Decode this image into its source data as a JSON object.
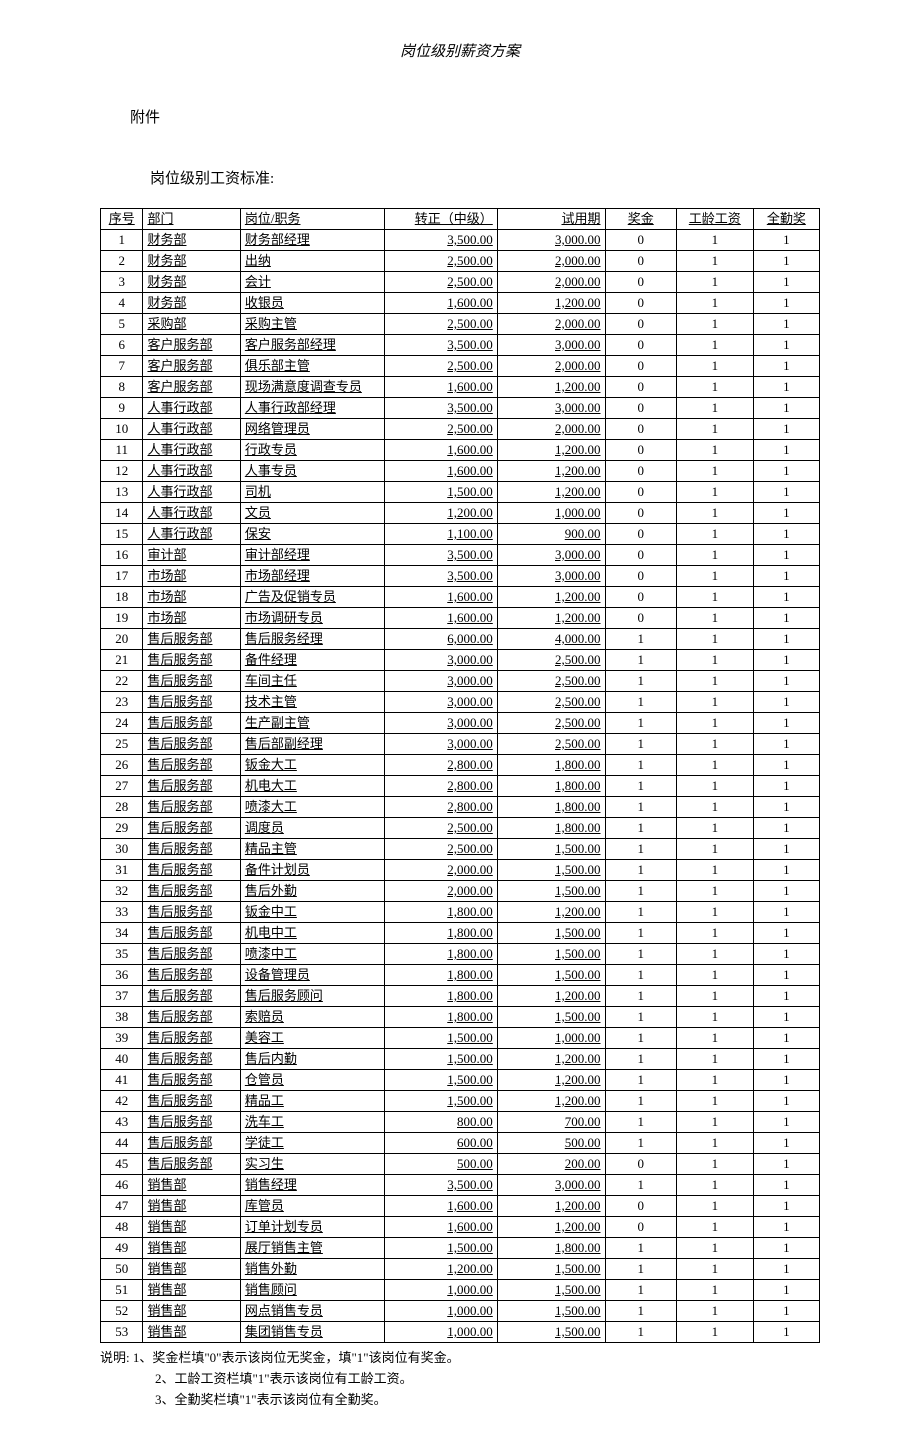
{
  "header": {
    "doc_title": "岗位级别薪资方案",
    "attachment": "附件",
    "subtitle": "岗位级别工资标准:"
  },
  "table": {
    "columns": [
      "序号",
      "部门",
      "岗位/职务",
      "转正（中级）",
      "试用期",
      "奖金",
      "工龄工资",
      "全勤奖"
    ],
    "rows": [
      [
        "1",
        "财务部",
        "财务部经理",
        "3,500.00",
        "3,000.00",
        "0",
        "1",
        "1"
      ],
      [
        "2",
        "财务部",
        "出纳",
        "2,500.00",
        "2,000.00",
        "0",
        "1",
        "1"
      ],
      [
        "3",
        "财务部",
        "会计",
        "2,500.00",
        "2,000.00",
        "0",
        "1",
        "1"
      ],
      [
        "4",
        "财务部",
        "收银员",
        "1,600.00",
        "1,200.00",
        "0",
        "1",
        "1"
      ],
      [
        "5",
        "采购部",
        "采购主管",
        "2,500.00",
        "2,000.00",
        "0",
        "1",
        "1"
      ],
      [
        "6",
        "客户服务部",
        "客户服务部经理",
        "3,500.00",
        "3,000.00",
        "0",
        "1",
        "1"
      ],
      [
        "7",
        "客户服务部",
        "俱乐部主管",
        "2,500.00",
        "2,000.00",
        "0",
        "1",
        "1"
      ],
      [
        "8",
        "客户服务部",
        "现场满意度调查专员",
        "1,600.00",
        "1,200.00",
        "0",
        "1",
        "1"
      ],
      [
        "9",
        "人事行政部",
        "人事行政部经理",
        "3,500.00",
        "3,000.00",
        "0",
        "1",
        "1"
      ],
      [
        "10",
        "人事行政部",
        "网络管理员",
        "2,500.00",
        "2,000.00",
        "0",
        "1",
        "1"
      ],
      [
        "11",
        "人事行政部",
        "行政专员",
        "1,600.00",
        "1,200.00",
        "0",
        "1",
        "1"
      ],
      [
        "12",
        "人事行政部",
        "人事专员",
        "1,600.00",
        "1,200.00",
        "0",
        "1",
        "1"
      ],
      [
        "13",
        "人事行政部",
        "司机",
        "1,500.00",
        "1,200.00",
        "0",
        "1",
        "1"
      ],
      [
        "14",
        "人事行政部",
        "文员",
        "1,200.00",
        "1,000.00",
        "0",
        "1",
        "1"
      ],
      [
        "15",
        "人事行政部",
        "保安",
        "1,100.00",
        "900.00",
        "0",
        "1",
        "1"
      ],
      [
        "16",
        "审计部",
        "审计部经理",
        "3,500.00",
        "3,000.00",
        "0",
        "1",
        "1"
      ],
      [
        "17",
        "市场部",
        "市场部经理",
        "3,500.00",
        "3,000.00",
        "0",
        "1",
        "1"
      ],
      [
        "18",
        "市场部",
        "广告及促销专员",
        "1,600.00",
        "1,200.00",
        "0",
        "1",
        "1"
      ],
      [
        "19",
        "市场部",
        "市场调研专员",
        "1,600.00",
        "1,200.00",
        "0",
        "1",
        "1"
      ],
      [
        "20",
        "售后服务部",
        "售后服务经理",
        "6,000.00",
        "4,000.00",
        "1",
        "1",
        "1"
      ],
      [
        "21",
        "售后服务部",
        "备件经理",
        "3,000.00",
        "2,500.00",
        "1",
        "1",
        "1"
      ],
      [
        "22",
        "售后服务部",
        "车间主任",
        "3,000.00",
        "2,500.00",
        "1",
        "1",
        "1"
      ],
      [
        "23",
        "售后服务部",
        "技术主管",
        "3,000.00",
        "2,500.00",
        "1",
        "1",
        "1"
      ],
      [
        "24",
        "售后服务部",
        "生产副主管",
        "3,000.00",
        "2,500.00",
        "1",
        "1",
        "1"
      ],
      [
        "25",
        "售后服务部",
        "售后部副经理",
        "3,000.00",
        "2,500.00",
        "1",
        "1",
        "1"
      ],
      [
        "26",
        "售后服务部",
        "钣金大工",
        "2,800.00",
        "1,800.00",
        "1",
        "1",
        "1"
      ],
      [
        "27",
        "售后服务部",
        "机电大工",
        "2,800.00",
        "1,800.00",
        "1",
        "1",
        "1"
      ],
      [
        "28",
        "售后服务部",
        "喷漆大工",
        "2,800.00",
        "1,800.00",
        "1",
        "1",
        "1"
      ],
      [
        "29",
        "售后服务部",
        "调度员",
        "2,500.00",
        "1,800.00",
        "1",
        "1",
        "1"
      ],
      [
        "30",
        "售后服务部",
        "精品主管",
        "2,500.00",
        "1,500.00",
        "1",
        "1",
        "1"
      ],
      [
        "31",
        "售后服务部",
        "备件计划员",
        "2,000.00",
        "1,500.00",
        "1",
        "1",
        "1"
      ],
      [
        "32",
        "售后服务部",
        "售后外勤",
        "2,000.00",
        "1,500.00",
        "1",
        "1",
        "1"
      ],
      [
        "33",
        "售后服务部",
        "钣金中工",
        "1,800.00",
        "1,200.00",
        "1",
        "1",
        "1"
      ],
      [
        "34",
        "售后服务部",
        "机电中工",
        "1,800.00",
        "1,500.00",
        "1",
        "1",
        "1"
      ],
      [
        "35",
        "售后服务部",
        "喷漆中工",
        "1,800.00",
        "1,500.00",
        "1",
        "1",
        "1"
      ],
      [
        "36",
        "售后服务部",
        "设备管理员",
        "1,800.00",
        "1,500.00",
        "1",
        "1",
        "1"
      ],
      [
        "37",
        "售后服务部",
        "售后服务顾问",
        "1,800.00",
        "1,200.00",
        "1",
        "1",
        "1"
      ],
      [
        "38",
        "售后服务部",
        "索赔员",
        "1,800.00",
        "1,500.00",
        "1",
        "1",
        "1"
      ],
      [
        "39",
        "售后服务部",
        "美容工",
        "1,500.00",
        "1,000.00",
        "1",
        "1",
        "1"
      ],
      [
        "40",
        "售后服务部",
        "售后内勤",
        "1,500.00",
        "1,200.00",
        "1",
        "1",
        "1"
      ],
      [
        "41",
        "售后服务部",
        "仓管员",
        "1,500.00",
        "1,200.00",
        "1",
        "1",
        "1"
      ],
      [
        "42",
        "售后服务部",
        "精品工",
        "1,500.00",
        "1,200.00",
        "1",
        "1",
        "1"
      ],
      [
        "43",
        "售后服务部",
        "洗车工",
        "800.00",
        "700.00",
        "1",
        "1",
        "1"
      ],
      [
        "44",
        "售后服务部",
        "学徒工",
        "600.00",
        "500.00",
        "1",
        "1",
        "1"
      ],
      [
        "45",
        "售后服务部",
        "实习生",
        "500.00",
        "200.00",
        "0",
        "1",
        "1"
      ],
      [
        "46",
        "销售部",
        "销售经理",
        "3,500.00",
        "3,000.00",
        "1",
        "1",
        "1"
      ],
      [
        "47",
        "销售部",
        "库管员",
        "1,600.00",
        "1,200.00",
        "0",
        "1",
        "1"
      ],
      [
        "48",
        "销售部",
        "订单计划专员",
        "1,600.00",
        "1,200.00",
        "0",
        "1",
        "1"
      ],
      [
        "49",
        "销售部",
        "展厅销售主管",
        "1,500.00",
        "1,800.00",
        "1",
        "1",
        "1"
      ],
      [
        "50",
        "销售部",
        "销售外勤",
        "1,200.00",
        "1,500.00",
        "1",
        "1",
        "1"
      ],
      [
        "51",
        "销售部",
        "销售顾问",
        "1,000.00",
        "1,500.00",
        "1",
        "1",
        "1"
      ],
      [
        "52",
        "销售部",
        "网点销售专员",
        "1,000.00",
        "1,500.00",
        "1",
        "1",
        "1"
      ],
      [
        "53",
        "销售部",
        "集团销售专员",
        "1,000.00",
        "1,500.00",
        "1",
        "1",
        "1"
      ]
    ]
  },
  "notes": {
    "line1": "说明: 1、奖金栏填\"0\"表示该岗位无奖金，填\"1\"该岗位有奖金。",
    "line2": "2、工龄工资栏填\"1\"表示该岗位有工龄工资。",
    "line3": "3、全勤奖栏填\"1\"表示该岗位有全勤奖。"
  }
}
